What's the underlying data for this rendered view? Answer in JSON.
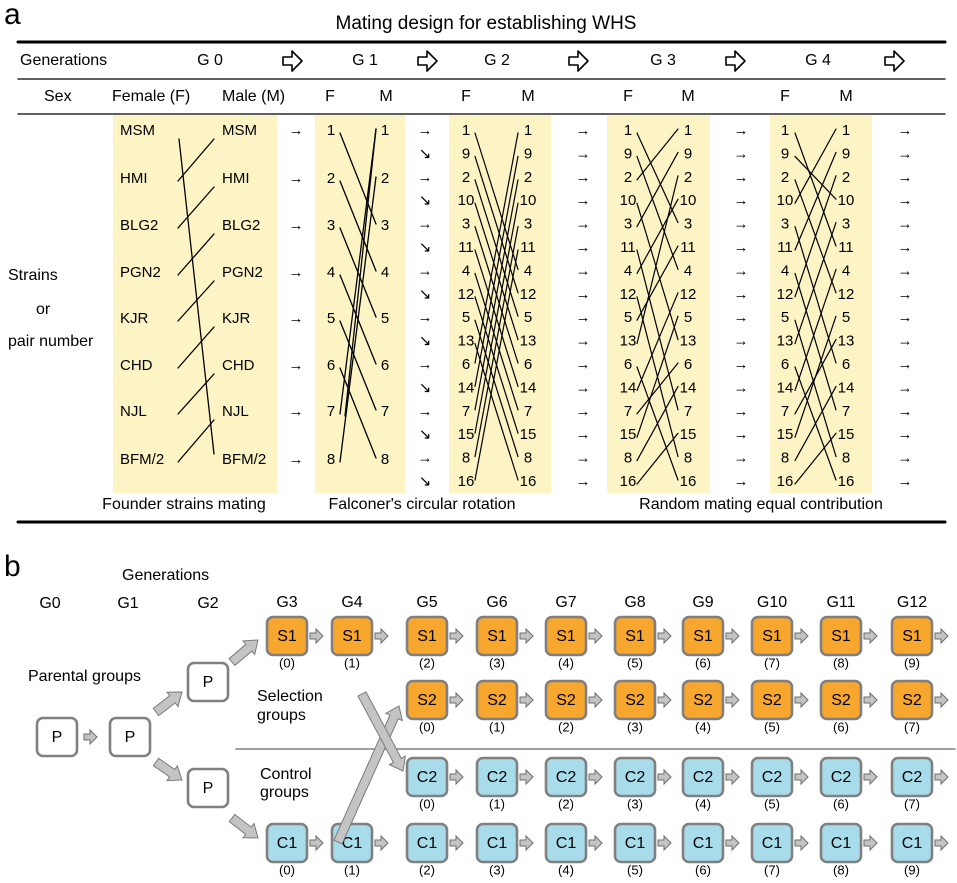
{
  "panel_a": {
    "letter": "a",
    "title": "Mating design for establishing WHS",
    "header": {
      "generations_label": "Generations",
      "generation_names": [
        "G 0",
        "G 1",
        "G 2",
        "G 3",
        "G 4"
      ],
      "sex_label": "Sex",
      "female_label": "Female (F)",
      "male_label": "Male (M)",
      "f_label": "F",
      "m_label": "M"
    },
    "row_label_lines": [
      "Strains",
      "or",
      "pair number"
    ],
    "strains": [
      "MSM",
      "HMI",
      "BLG2",
      "PGN2",
      "KJR",
      "CHD",
      "NJL",
      "BFM/2"
    ],
    "g1_numbers": [
      "1",
      "2",
      "3",
      "4",
      "5",
      "6",
      "7",
      "8"
    ],
    "pair_numbers": [
      "1",
      "9",
      "2",
      "10",
      "3",
      "11",
      "4",
      "12",
      "5",
      "13",
      "6",
      "14",
      "7",
      "15",
      "8",
      "16"
    ],
    "captions": [
      "Founder strains mating",
      "Falconer's circular rotation",
      "Random mating equal contribution"
    ],
    "arrow_glyph": "→",
    "diag_arrow_glyph": "↘",
    "highlight_color": "#fcf4c4"
  },
  "panel_b": {
    "letter": "b",
    "generations_label": "Generations",
    "generations": [
      "G0",
      "G1",
      "G2",
      "G3",
      "G4",
      "G5",
      "G6",
      "G7",
      "G8",
      "G9",
      "G10",
      "G11",
      "G12"
    ],
    "parental_label": "Parental groups",
    "selection_label_lines": [
      "Selection",
      "groups"
    ],
    "control_label_lines": [
      "Control",
      "groups"
    ],
    "p_label": "P",
    "rows": [
      {
        "name": "S1",
        "color": "#f7a62e",
        "counts": [
          "(0)",
          "(1)",
          "(2)",
          "(3)",
          "(4)",
          "(5)",
          "(6)",
          "(7)",
          "(8)",
          "(9)"
        ]
      },
      {
        "name": "S2",
        "color": "#f7a62e",
        "counts": [
          "(0)",
          "(1)",
          "(2)",
          "(3)",
          "(4)",
          "(5)",
          "(6)",
          "(7)"
        ]
      },
      {
        "name": "C2",
        "color": "#a8dcea",
        "counts": [
          "(0)",
          "(1)",
          "(2)",
          "(3)",
          "(4)",
          "(5)",
          "(6)",
          "(7)"
        ]
      },
      {
        "name": "C1",
        "color": "#a8dcea",
        "counts": [
          "(0)",
          "(1)",
          "(2)",
          "(3)",
          "(4)",
          "(5)",
          "(6)",
          "(7)",
          "(8)",
          "(9)"
        ]
      }
    ],
    "box_border_color": "#808080",
    "arrow_color": "#c4c4c4"
  }
}
